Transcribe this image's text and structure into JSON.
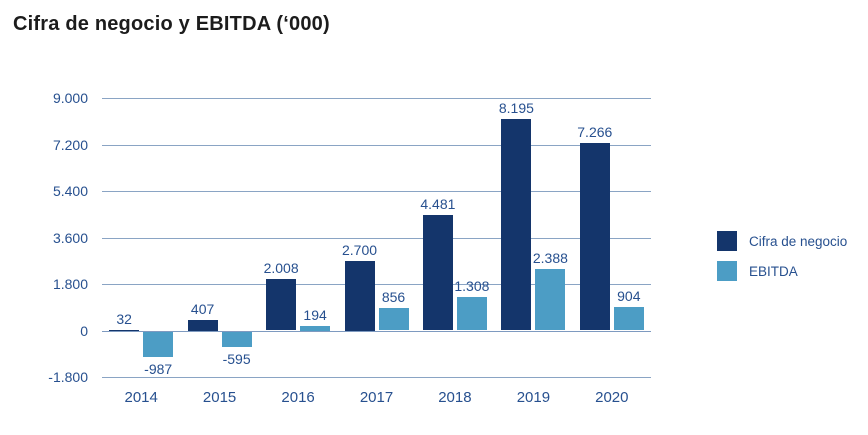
{
  "title": "Cifra de negocio y EBITDA (‘000)",
  "colors": {
    "cifra_de_negocio": "#14356B",
    "ebitda": "#4C9DC5",
    "axis_text": "#27508F",
    "gridline": "#8aa4c4",
    "title_text": "#1c1c1c"
  },
  "chart_data": {
    "type": "bar",
    "title": "Cifra de negocio y EBITDA (‘000)",
    "categories": [
      "2014",
      "2015",
      "2016",
      "2017",
      "2018",
      "2019",
      "2020"
    ],
    "series": [
      {
        "name": "Cifra de negocio",
        "color": "#14356B",
        "values": [
          32,
          407,
          2008,
          2700,
          4481,
          8195,
          7266
        ],
        "labels": [
          "32",
          "407",
          "2.008",
          "2.700",
          "4.481",
          "8.195",
          "7.266"
        ]
      },
      {
        "name": "EBITDA",
        "color": "#4C9DC5",
        "values": [
          -987,
          -595,
          194,
          856,
          1308,
          2388,
          904
        ],
        "labels": [
          "-987",
          "-595",
          "194",
          "856",
          "1.308",
          "2.388",
          "904"
        ]
      }
    ],
    "xlabel": "",
    "ylabel": "",
    "ylim": [
      -1800,
      9000
    ],
    "yticks": [
      {
        "value": 9000,
        "label": "9.000"
      },
      {
        "value": 7200,
        "label": "7.200"
      },
      {
        "value": 5400,
        "label": "5.400"
      },
      {
        "value": 3600,
        "label": "3.600"
      },
      {
        "value": 1800,
        "label": "1.800"
      },
      {
        "value": 0,
        "label": "0"
      },
      {
        "value": -1800,
        "label": "-1.800"
      }
    ],
    "grid": true,
    "legend_position": "right"
  }
}
